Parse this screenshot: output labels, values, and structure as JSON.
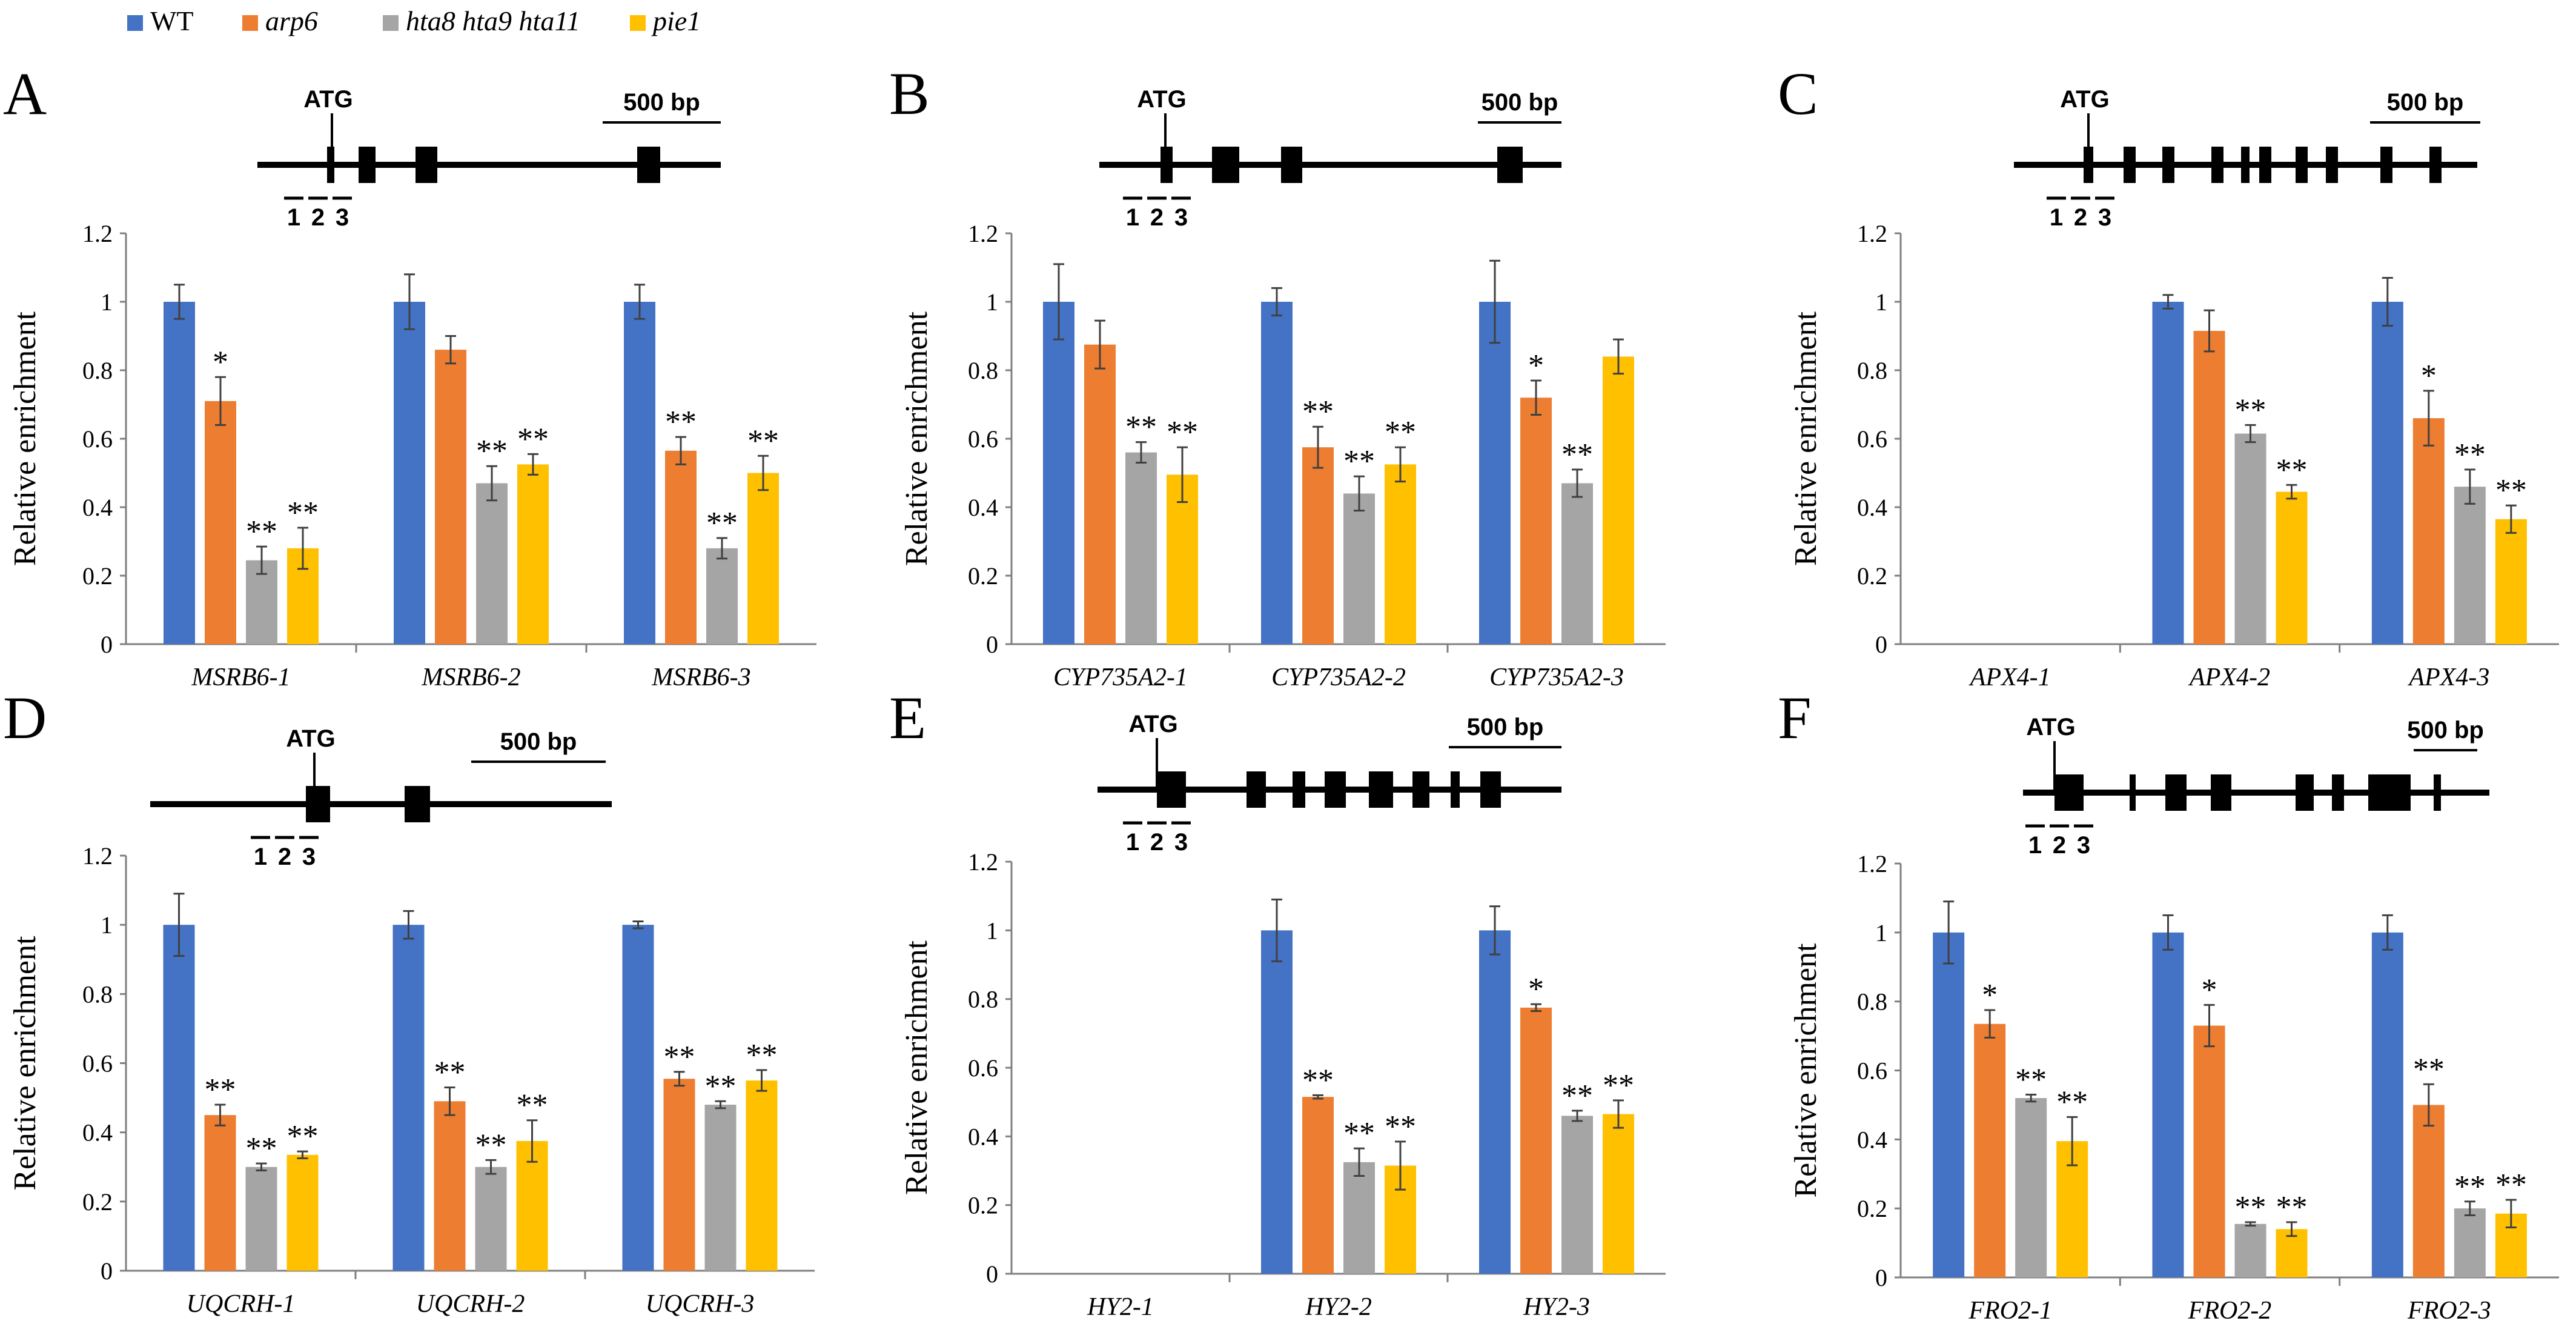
{
  "legend": [
    {
      "name": "WT",
      "italic": false,
      "color": "#4472C4"
    },
    {
      "name": "arp6",
      "italic": true,
      "color": "#ED7D31"
    },
    {
      "name": "hta8 hta9 hta11",
      "italic": true,
      "color": "#A5A5A5"
    },
    {
      "name": "pie1",
      "italic": true,
      "color": "#FFC000"
    }
  ],
  "chart_data": [
    {
      "panel": "A",
      "type": "bar",
      "ylabel": "Relative enrichment",
      "ylim": [
        0,
        1.2
      ],
      "yticks": [
        "0",
        "0.2",
        "0.4",
        "0.6",
        "0.8",
        "1",
        "1.2"
      ],
      "categories": [
        "MSRB6-1",
        "MSRB6-2",
        "MSRB6-3"
      ],
      "series": [
        {
          "name": "WT",
          "values": [
            1,
            1,
            1
          ],
          "errors": [
            0.05,
            0.08,
            0.05
          ],
          "sig": [
            "",
            "",
            ""
          ]
        },
        {
          "name": "arp6",
          "values": [
            0.71,
            0.86,
            0.565
          ],
          "errors": [
            0.07,
            0.04,
            0.04
          ],
          "sig": [
            "*",
            "",
            "**"
          ]
        },
        {
          "name": "hta8 hta9 hta11",
          "values": [
            0.245,
            0.47,
            0.28
          ],
          "errors": [
            0.04,
            0.05,
            0.03
          ],
          "sig": [
            "**",
            "**",
            "**"
          ]
        },
        {
          "name": "pie1",
          "values": [
            0.28,
            0.525,
            0.5
          ],
          "errors": [
            0.06,
            0.03,
            0.05
          ],
          "sig": [
            "**",
            "**",
            "**"
          ]
        }
      ],
      "gene": {
        "atg": "ATG",
        "scale": "500 bp",
        "primers": [
          "1",
          "2",
          "3"
        ]
      }
    },
    {
      "panel": "B",
      "type": "bar",
      "ylabel": "Relative enrichment",
      "ylim": [
        0,
        1.2
      ],
      "yticks": [
        "0",
        "0.2",
        "0.4",
        "0.6",
        "0.8",
        "1",
        "1.2"
      ],
      "categories": [
        "CYP735A2-1",
        "CYP735A2-2",
        "CYP735A2-3"
      ],
      "series": [
        {
          "name": "WT",
          "values": [
            1,
            1,
            1
          ],
          "errors": [
            0.11,
            0.04,
            0.12
          ],
          "sig": [
            "",
            "",
            ""
          ]
        },
        {
          "name": "arp6",
          "values": [
            0.875,
            0.575,
            0.72
          ],
          "errors": [
            0.07,
            0.06,
            0.05
          ],
          "sig": [
            "",
            "**",
            "*"
          ]
        },
        {
          "name": "hta8 hta9 hta11",
          "values": [
            0.56,
            0.44,
            0.47
          ],
          "errors": [
            0.03,
            0.05,
            0.04
          ],
          "sig": [
            "**",
            "**",
            "**"
          ]
        },
        {
          "name": "pie1",
          "values": [
            0.495,
            0.525,
            0.84
          ],
          "errors": [
            0.08,
            0.05,
            0.05
          ],
          "sig": [
            "**",
            "**",
            ""
          ]
        }
      ],
      "gene": {
        "atg": "ATG",
        "scale": "500 bp",
        "primers": [
          "1",
          "2",
          "3"
        ]
      }
    },
    {
      "panel": "C",
      "type": "bar",
      "ylabel": "Relative enrichment",
      "ylim": [
        0,
        1.2
      ],
      "yticks": [
        "0",
        "0.2",
        "0.4",
        "0.6",
        "0.8",
        "1",
        "1.2"
      ],
      "categories": [
        "APX4-1",
        "APX4-2",
        "APX4-3"
      ],
      "series": [
        {
          "name": "WT",
          "values": [
            null,
            1,
            1
          ],
          "errors": [
            0,
            0.02,
            0.07
          ],
          "sig": [
            "",
            "",
            ""
          ]
        },
        {
          "name": "arp6",
          "values": [
            null,
            0.915,
            0.66
          ],
          "errors": [
            0,
            0.06,
            0.08
          ],
          "sig": [
            "",
            "",
            "*"
          ]
        },
        {
          "name": "hta8 hta9 hta11",
          "values": [
            null,
            0.615,
            0.46
          ],
          "errors": [
            0,
            0.025,
            0.05
          ],
          "sig": [
            "",
            "**",
            "**"
          ]
        },
        {
          "name": "pie1",
          "values": [
            null,
            0.445,
            0.365
          ],
          "errors": [
            0,
            0.02,
            0.04
          ],
          "sig": [
            "",
            "**",
            "**"
          ]
        }
      ],
      "gene": {
        "atg": "ATG",
        "scale": "500 bp",
        "primers": [
          "1",
          "2",
          "3"
        ]
      }
    },
    {
      "panel": "D",
      "type": "bar",
      "ylabel": "Relative enrichment",
      "ylim": [
        0,
        1.2
      ],
      "yticks": [
        "0",
        "0.2",
        "0.4",
        "0.6",
        "0.8",
        "1",
        "1.2"
      ],
      "categories": [
        "UQCRH-1",
        "UQCRH-2",
        "UQCRH-3"
      ],
      "series": [
        {
          "name": "WT",
          "values": [
            1,
            1,
            1
          ],
          "errors": [
            0.09,
            0.04,
            0.01
          ],
          "sig": [
            "",
            "",
            ""
          ]
        },
        {
          "name": "arp6",
          "values": [
            0.45,
            0.49,
            0.555
          ],
          "errors": [
            0.03,
            0.04,
            0.02
          ],
          "sig": [
            "**",
            "**",
            "**"
          ]
        },
        {
          "name": "hta8 hta9 hta11",
          "values": [
            0.3,
            0.3,
            0.48
          ],
          "errors": [
            0.01,
            0.02,
            0.01
          ],
          "sig": [
            "**",
            "**",
            "**"
          ]
        },
        {
          "name": "pie1",
          "values": [
            0.335,
            0.375,
            0.55
          ],
          "errors": [
            0.01,
            0.06,
            0.03
          ],
          "sig": [
            "**",
            "**",
            "**"
          ]
        }
      ],
      "gene": {
        "atg": "ATG",
        "scale": "500 bp",
        "primers": [
          "1",
          "2",
          "3"
        ]
      }
    },
    {
      "panel": "E",
      "type": "bar",
      "ylabel": "Relative enrichment",
      "ylim": [
        0,
        1.2
      ],
      "yticks": [
        "0",
        "0.2",
        "0.4",
        "0.6",
        "0.8",
        "1",
        "1.2"
      ],
      "categories": [
        "HY2-1",
        "HY2-2",
        "HY2-3"
      ],
      "series": [
        {
          "name": "WT",
          "values": [
            null,
            1,
            1
          ],
          "errors": [
            0,
            0.09,
            0.07
          ],
          "sig": [
            "",
            "",
            ""
          ]
        },
        {
          "name": "arp6",
          "values": [
            null,
            0.515,
            0.775
          ],
          "errors": [
            0,
            0.005,
            0.01
          ],
          "sig": [
            "",
            "**",
            "*"
          ]
        },
        {
          "name": "hta8 hta9 hta11",
          "values": [
            null,
            0.325,
            0.46
          ],
          "errors": [
            0,
            0.04,
            0.015
          ],
          "sig": [
            "",
            "**",
            "**"
          ]
        },
        {
          "name": "pie1",
          "values": [
            null,
            0.315,
            0.465
          ],
          "errors": [
            0,
            0.07,
            0.04
          ],
          "sig": [
            "",
            "**",
            "**"
          ]
        }
      ],
      "gene": {
        "atg": "ATG",
        "scale": "500 bp",
        "primers": [
          "1",
          "2",
          "3"
        ]
      }
    },
    {
      "panel": "F",
      "type": "bar",
      "ylabel": "Relative enrichment",
      "ylim": [
        0,
        1.2
      ],
      "yticks": [
        "0",
        "0.2",
        "0.4",
        "0.6",
        "0.8",
        "1",
        "1.2"
      ],
      "categories": [
        "FRO2-1",
        "FRO2-2",
        "FRO2-3"
      ],
      "series": [
        {
          "name": "WT",
          "values": [
            1,
            1,
            1
          ],
          "errors": [
            0.09,
            0.05,
            0.05
          ],
          "sig": [
            "",
            "",
            ""
          ]
        },
        {
          "name": "arp6",
          "values": [
            0.735,
            0.73,
            0.5
          ],
          "errors": [
            0.04,
            0.06,
            0.06
          ],
          "sig": [
            "*",
            "*",
            "**"
          ]
        },
        {
          "name": "hta8 hta9 hta11",
          "values": [
            0.52,
            0.155,
            0.2
          ],
          "errors": [
            0.01,
            0.005,
            0.02
          ],
          "sig": [
            "**",
            "**",
            "**"
          ]
        },
        {
          "name": "pie1",
          "values": [
            0.395,
            0.14,
            0.185
          ],
          "errors": [
            0.07,
            0.02,
            0.04
          ],
          "sig": [
            "**",
            "**",
            "**"
          ]
        }
      ],
      "gene": {
        "atg": "ATG",
        "scale": "500 bp",
        "primers": [
          "1",
          "2",
          "3"
        ]
      }
    }
  ]
}
